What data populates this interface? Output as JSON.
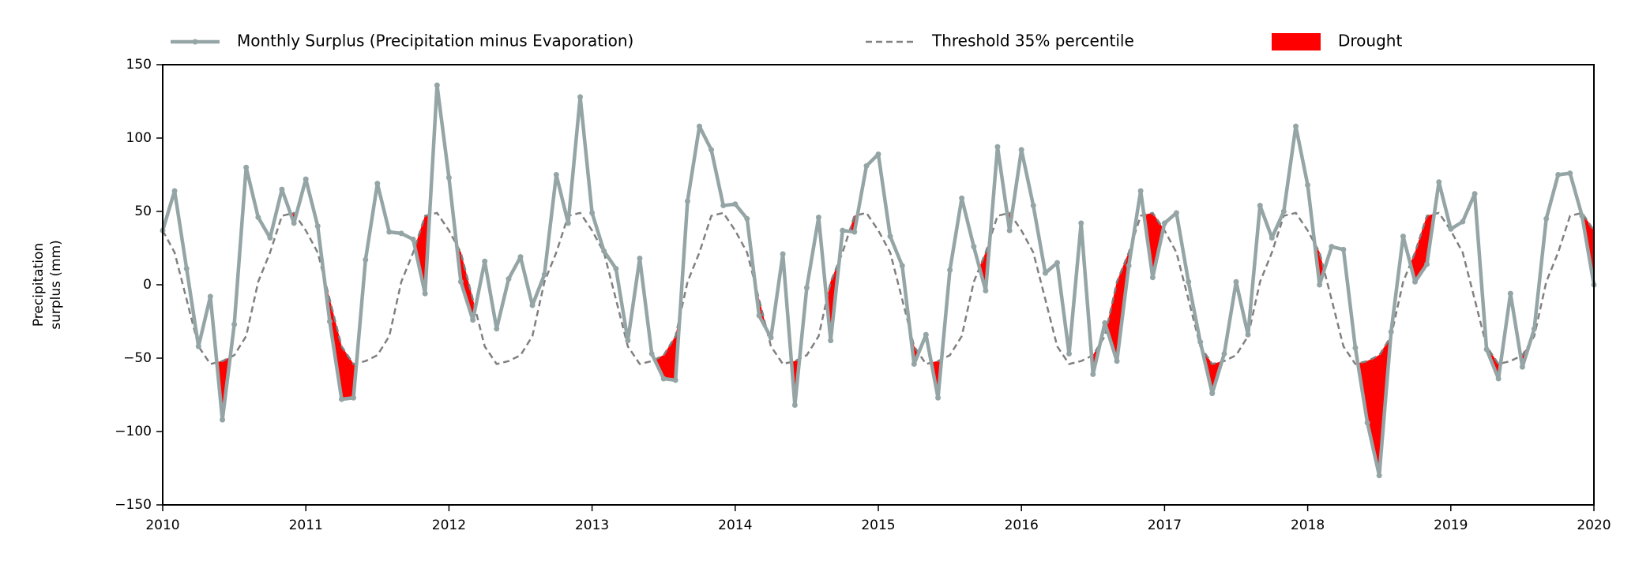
{
  "chart_data": {
    "type": "line",
    "ylabel": [
      "Precipitation",
      "surplus (mm)"
    ],
    "x": [
      2010,
      2010.083,
      2010.167,
      2010.25,
      2010.333,
      2010.417,
      2010.5,
      2010.583,
      2010.667,
      2010.75,
      2010.833,
      2010.917,
      2011,
      2011.083,
      2011.167,
      2011.25,
      2011.333,
      2011.417,
      2011.5,
      2011.583,
      2011.667,
      2011.75,
      2011.833,
      2011.917,
      2012,
      2012.083,
      2012.167,
      2012.25,
      2012.333,
      2012.417,
      2012.5,
      2012.583,
      2012.667,
      2012.75,
      2012.833,
      2012.917,
      2013,
      2013.083,
      2013.167,
      2013.25,
      2013.333,
      2013.417,
      2013.5,
      2013.583,
      2013.667,
      2013.75,
      2013.833,
      2013.917,
      2014,
      2014.083,
      2014.167,
      2014.25,
      2014.333,
      2014.417,
      2014.5,
      2014.583,
      2014.667,
      2014.75,
      2014.833,
      2014.917,
      2015,
      2015.083,
      2015.167,
      2015.25,
      2015.333,
      2015.417,
      2015.5,
      2015.583,
      2015.667,
      2015.75,
      2015.833,
      2015.917,
      2016,
      2016.083,
      2016.167,
      2016.25,
      2016.333,
      2016.417,
      2016.5,
      2016.583,
      2016.667,
      2016.75,
      2016.833,
      2016.917,
      2017,
      2017.083,
      2017.167,
      2017.25,
      2017.333,
      2017.417,
      2017.5,
      2017.583,
      2017.667,
      2017.75,
      2017.833,
      2017.917,
      2018,
      2018.083,
      2018.167,
      2018.25,
      2018.333,
      2018.417,
      2018.5,
      2018.583,
      2018.667,
      2018.75,
      2018.833,
      2018.917,
      2019,
      2019.083,
      2019.167,
      2019.25,
      2019.333,
      2019.417,
      2019.5,
      2019.583,
      2019.667,
      2019.75,
      2019.833,
      2019.917,
      2020
    ],
    "series": [
      {
        "name": "Monthly Surplus (Precipitation minus Evaporation)",
        "color": "#95a5a6",
        "style": "solid",
        "markers": true,
        "values": [
          37,
          64,
          11,
          -42,
          -8,
          -92,
          -27,
          80,
          46,
          32,
          65,
          42,
          72,
          40,
          -25,
          -78,
          -77,
          17,
          69,
          36,
          35,
          31,
          -6,
          136,
          73,
          2,
          -24,
          16,
          -30,
          4,
          19,
          -14,
          7,
          75,
          42,
          128,
          49,
          23,
          11,
          -38,
          18,
          -47,
          -64,
          -65,
          57,
          108,
          92,
          54,
          55,
          45,
          -21,
          -36,
          21,
          -82,
          -2,
          46,
          -38,
          37,
          36,
          81,
          89,
          33,
          13,
          -54,
          -34,
          -77,
          10,
          59,
          26,
          -4,
          94,
          37,
          92,
          54,
          8,
          15,
          -47,
          42,
          -61,
          -26,
          -52,
          13,
          64,
          5,
          42,
          49,
          2,
          -39,
          -74,
          -47,
          2,
          -34,
          54,
          32,
          50,
          108,
          68,
          0,
          26,
          24,
          -43,
          -94,
          -130,
          -32,
          33,
          2,
          14,
          70,
          38,
          43,
          62,
          -44,
          -64,
          -6,
          -56,
          -30,
          45,
          75,
          76,
          47,
          0
        ]
      },
      {
        "name": "Threshold 35% percentile",
        "color": "#808080",
        "style": "dashed",
        "markers": false,
        "values": [
          37,
          22,
          -10,
          -42,
          -54,
          -52,
          -48,
          -35,
          2,
          22,
          47,
          49,
          37,
          22,
          -10,
          -42,
          -54,
          -52,
          -48,
          -35,
          2,
          22,
          47,
          49,
          37,
          22,
          -10,
          -42,
          -54,
          -52,
          -48,
          -35,
          2,
          22,
          47,
          49,
          37,
          22,
          -10,
          -42,
          -54,
          -52,
          -48,
          -35,
          2,
          22,
          47,
          49,
          37,
          22,
          -10,
          -42,
          -54,
          -52,
          -48,
          -35,
          2,
          22,
          47,
          49,
          37,
          22,
          -10,
          -42,
          -54,
          -52,
          -48,
          -35,
          2,
          22,
          47,
          49,
          37,
          22,
          -10,
          -42,
          -54,
          -52,
          -48,
          -35,
          2,
          22,
          47,
          49,
          37,
          22,
          -10,
          -42,
          -54,
          -52,
          -48,
          -35,
          2,
          22,
          47,
          49,
          37,
          22,
          -10,
          -42,
          -54,
          -52,
          -48,
          -35,
          2,
          22,
          47,
          49,
          37,
          22,
          -10,
          -42,
          -54,
          -52,
          -48,
          -35,
          2,
          22,
          47,
          49,
          37
        ]
      }
    ],
    "fill": {
      "name": "Drought",
      "color": "#ff0000"
    },
    "xlim": [
      2010,
      2020
    ],
    "xticks": [
      2010,
      2011,
      2012,
      2013,
      2014,
      2015,
      2016,
      2017,
      2018,
      2019,
      2020
    ],
    "ylim": [
      -150,
      150
    ],
    "yticks": [
      {
        "value": -150,
        "label": "−150"
      },
      {
        "value": -100,
        "label": "−100"
      },
      {
        "value": -50,
        "label": "−50"
      },
      0,
      50,
      100,
      150
    ],
    "grid": false,
    "legend": "top"
  }
}
